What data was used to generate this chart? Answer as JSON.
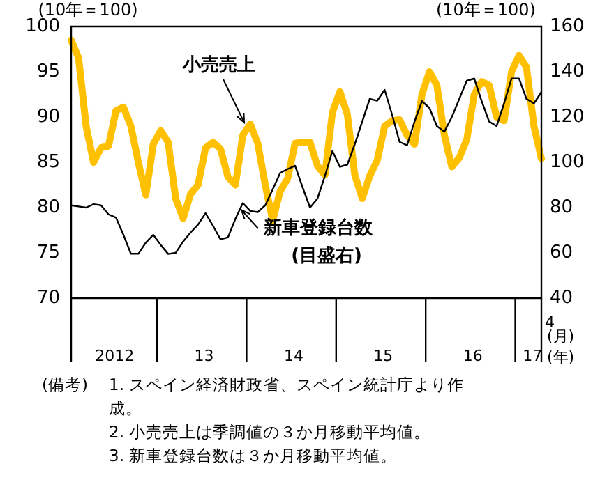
{
  "chart_data": {
    "type": "line",
    "ylabel": "(10年＝100)",
    "y2label": "(10年＝100)",
    "categories": [
      null,
      null,
      null,
      null,
      null,
      null,
      "2012",
      null,
      null,
      null,
      null,
      null,
      null,
      null,
      null,
      null,
      null,
      null,
      "13",
      null,
      null,
      null,
      null,
      null,
      null,
      null,
      null,
      null,
      null,
      null,
      "14",
      null,
      null,
      null,
      null,
      null,
      null,
      null,
      null,
      null,
      null,
      null,
      "15",
      null,
      null,
      null,
      null,
      null,
      null,
      null,
      null,
      null,
      null,
      null,
      "16",
      null,
      null,
      null,
      null,
      null,
      null,
      null,
      "17",
      null
    ],
    "series": [
      {
        "name": "小売売上",
        "color": "#ffc000",
        "values": [
          98.5,
          96.5,
          89,
          85,
          86.6,
          86.8,
          90.7,
          91.1,
          89,
          85,
          81.4,
          87,
          88.5,
          87.2,
          81,
          78.8,
          81.5,
          82.5,
          86.6,
          87.2,
          86.5,
          83.4,
          82.5,
          88,
          89.2,
          87.1,
          82.5,
          78.6,
          81.8,
          83.2,
          87.1,
          87.2,
          87.2,
          84.6,
          83.6,
          90.5,
          92.8,
          90.3,
          83.6,
          81,
          83.5,
          85.2,
          89,
          89.6,
          89.7,
          88,
          87,
          92.5,
          95,
          93.5,
          88,
          84.5,
          85.5,
          87.5,
          92.5,
          93.9,
          93.5,
          90,
          89.6,
          95,
          96.8,
          95.5,
          89,
          85.4
        ]
      },
      {
        "name": "新車登録台数",
        "color": "#000000",
        "axis": "y2",
        "values": [
          81,
          80.5,
          80,
          81.5,
          81,
          77,
          75.6,
          68,
          59.6,
          59.6,
          64.5,
          68,
          63.5,
          59.5,
          60,
          65,
          69,
          72.5,
          77.5,
          72,
          66,
          66.8,
          75,
          82,
          78.5,
          78,
          81,
          88,
          95.3,
          97,
          98.5,
          89,
          80,
          84,
          94,
          105,
          98,
          99,
          108,
          118,
          128,
          127.2,
          132,
          121,
          109,
          107.5,
          118,
          127,
          124,
          116,
          113.5,
          120,
          128,
          136,
          137,
          127,
          118,
          116,
          126,
          137,
          137,
          128,
          126,
          131
        ]
      }
    ],
    "ylim": [
      70,
      100
    ],
    "yticks": [
      70,
      75,
      80,
      85,
      90,
      95,
      100
    ],
    "y2lim": [
      40,
      160
    ],
    "y2ticks": [
      40,
      60,
      80,
      100,
      120,
      140,
      160
    ],
    "grid": false,
    "marker": "none",
    "line_style": "solid",
    "annotations": [
      "(目盛右)",
      "(月)",
      "(年)",
      "(備考)",
      "1.  スペイン経済財政省、スペイン統計庁より作成。",
      "2.  小売売上は季調値の３か月移動平均値。",
      "3.  新車登録台数は３か月移動平均値。",
      "4"
    ]
  }
}
